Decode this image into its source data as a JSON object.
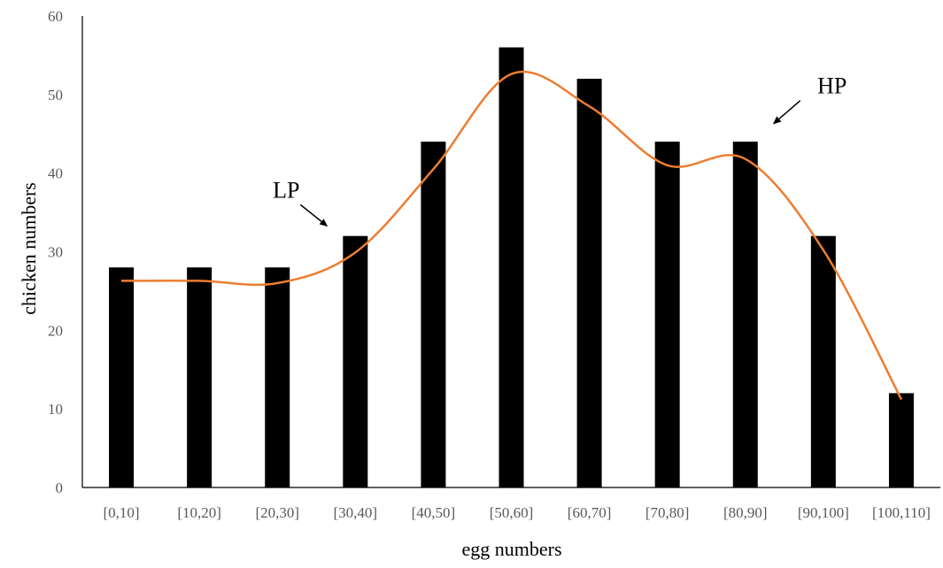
{
  "chart_data": {
    "type": "bar",
    "xlabel": "egg numbers",
    "ylabel": "chicken numbers",
    "categories": [
      "[0,10]",
      "[10,20]",
      "[20,30]",
      "[30,40]",
      "[40,50]",
      "[50,60]",
      "[60,70]",
      "[70,80]",
      "[80,90]",
      "[90,100]",
      "[100,110]"
    ],
    "series": [
      {
        "values": [
          28,
          28,
          28,
          32,
          44,
          56,
          52,
          44,
          44,
          32,
          12
        ]
      }
    ],
    "trend_line": {
      "values": [
        26.3,
        26.3,
        26.0,
        29.9,
        40.5,
        52.6,
        48.5,
        41.0,
        41.8,
        30.2,
        11.2
      ],
      "smooth": true
    },
    "ylim": [
      0,
      60
    ],
    "yticks": [
      0,
      10,
      20,
      30,
      40,
      50,
      60
    ],
    "grid": false,
    "legend": "none",
    "annotations": [
      {
        "text": "LP",
        "category_index": 3
      },
      {
        "text": "HP",
        "category_index": 8
      }
    ],
    "overlay_text": "chicken numbers",
    "colors": {
      "bar": "#000000",
      "trend_line": "#ED7D31",
      "axis": "#000000",
      "tick_label": "#595959"
    }
  }
}
